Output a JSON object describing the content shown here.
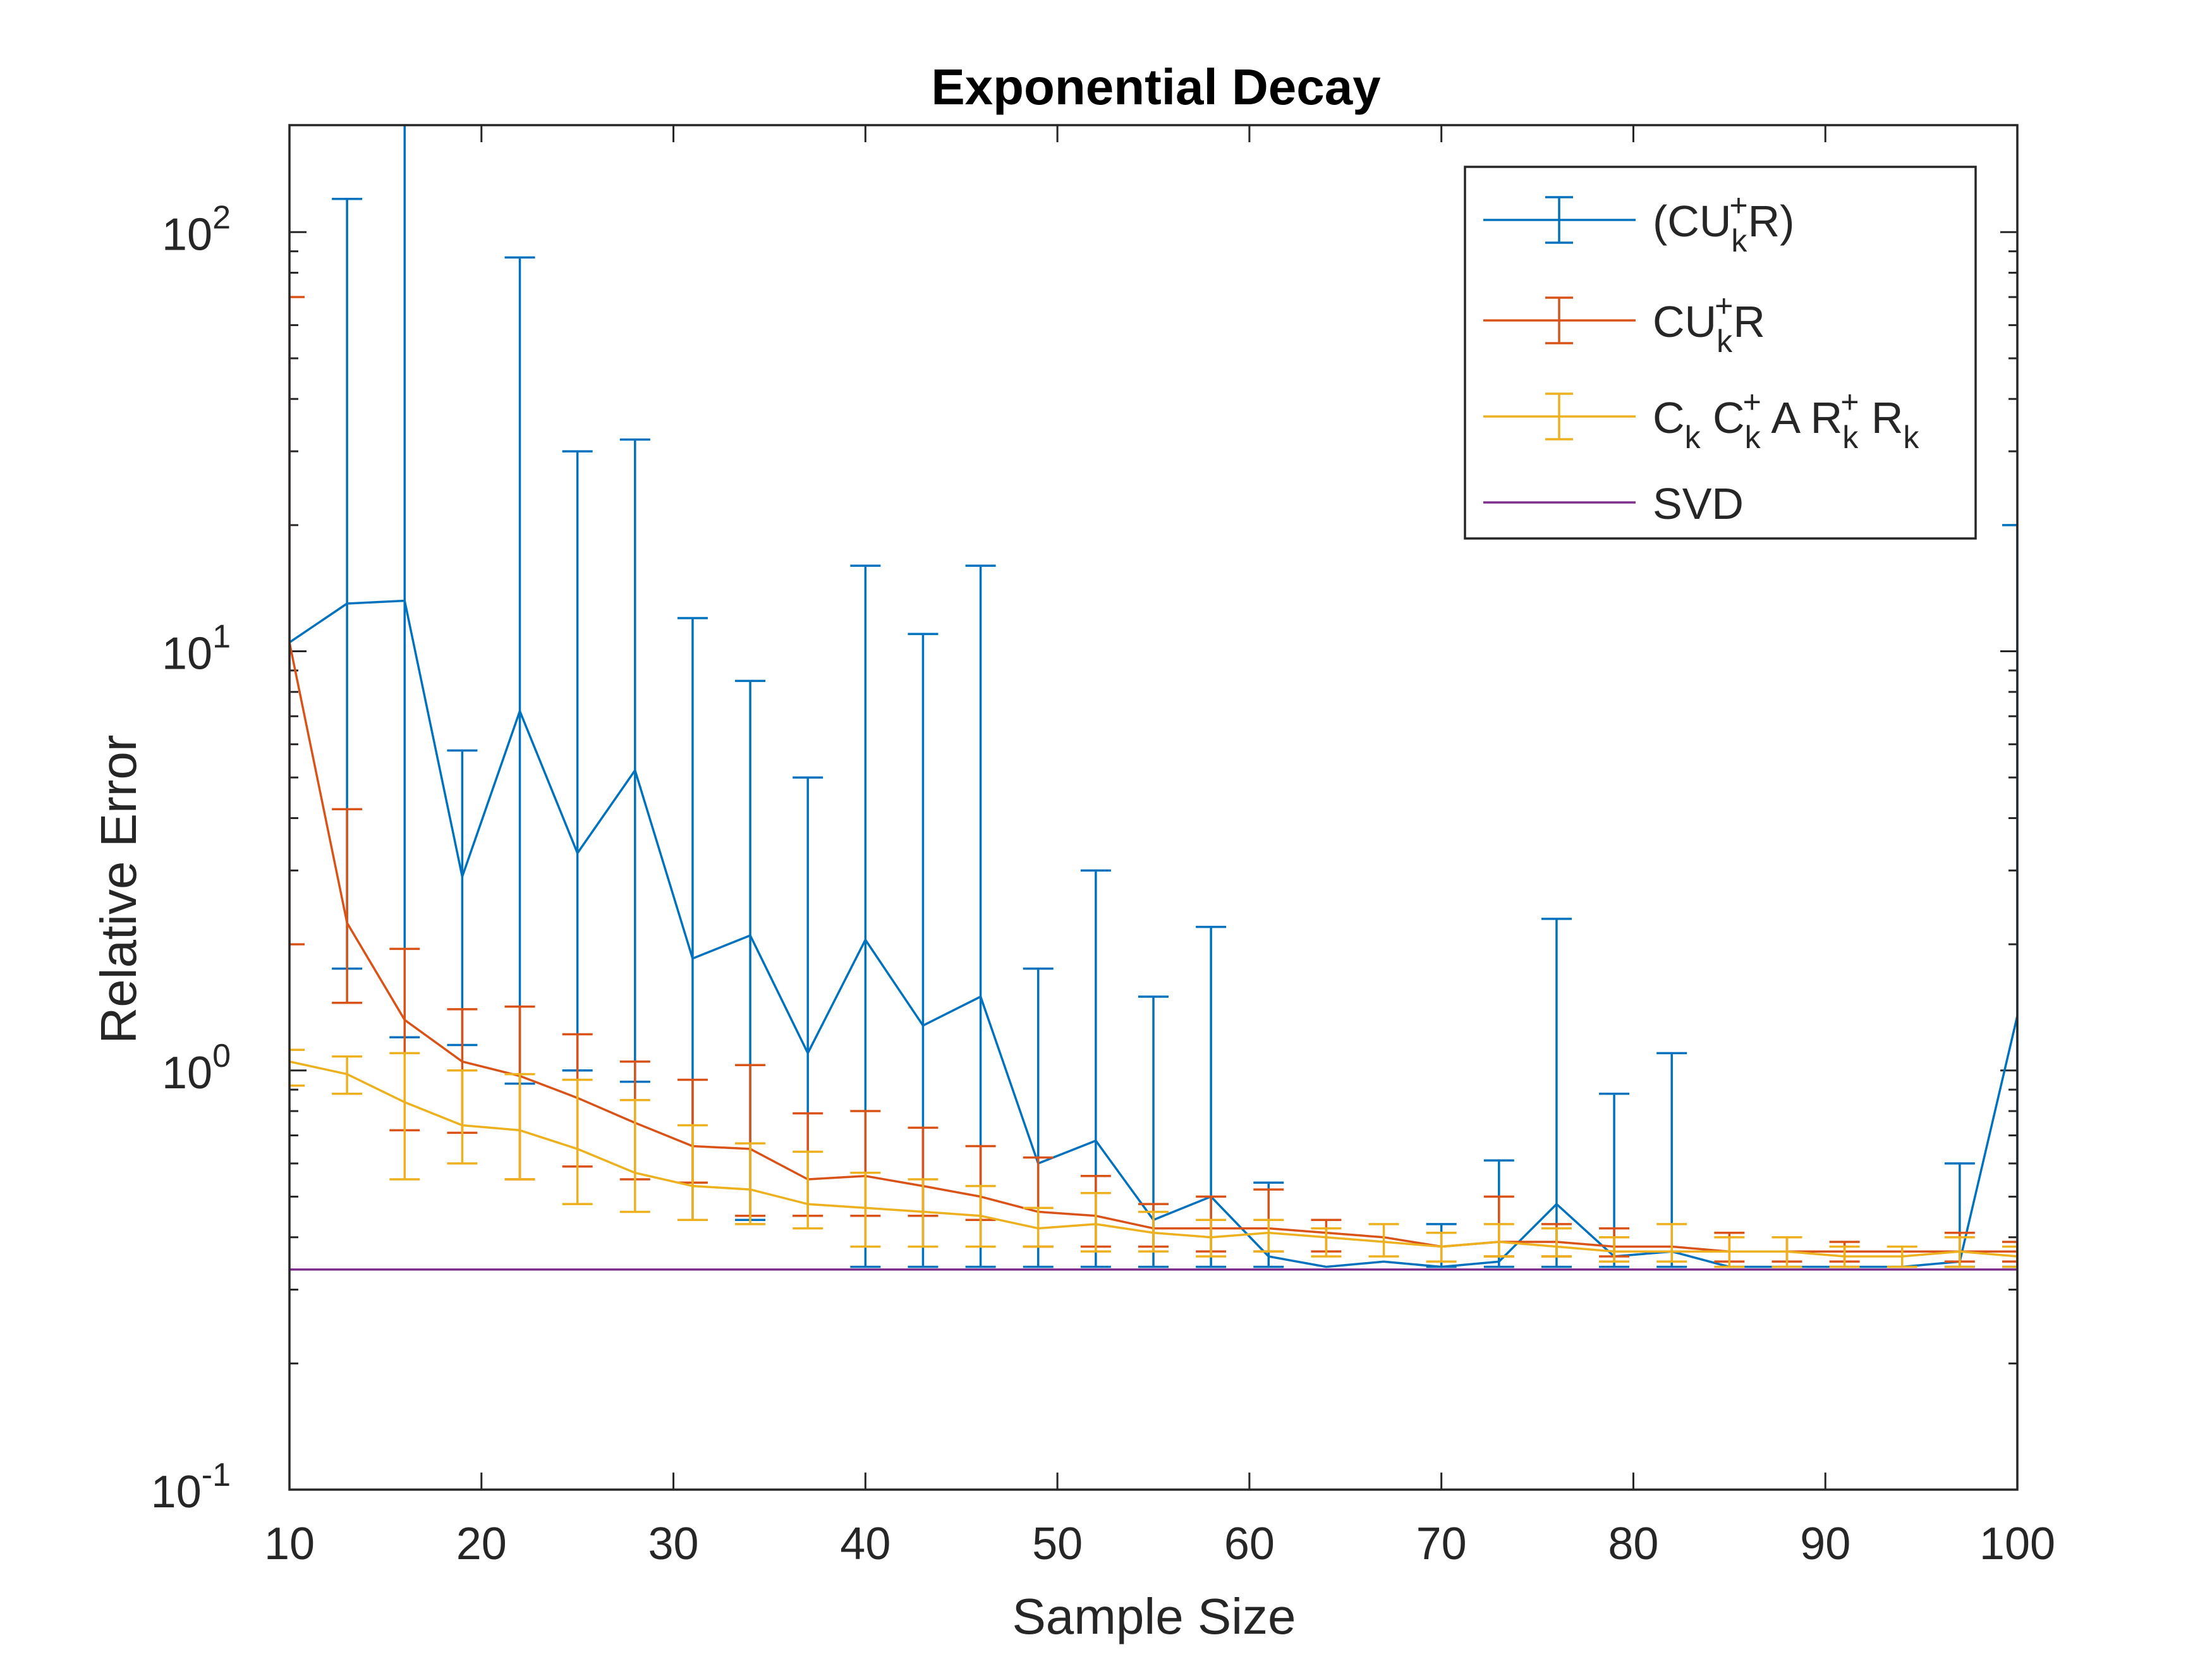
{
  "chart_data": {
    "type": "line",
    "title": "Exponential Decay",
    "xlabel": "Sample Size",
    "ylabel": "Relative Error",
    "xlim": [
      10,
      100
    ],
    "ylim": [
      0.1,
      180
    ],
    "yscale": "log",
    "grid": false,
    "legend_position": "top-right",
    "xticks": [
      10,
      20,
      30,
      40,
      50,
      60,
      70,
      80,
      90,
      100
    ],
    "yticks": [
      {
        "base": "10",
        "exp": "-1",
        "value": 0.1
      },
      {
        "base": "10",
        "exp": "0",
        "value": 1
      },
      {
        "base": "10",
        "exp": "1",
        "value": 10
      },
      {
        "base": "10",
        "exp": "2",
        "value": 100
      }
    ],
    "x": [
      10,
      13,
      16,
      19,
      22,
      25,
      28,
      31,
      34,
      37,
      40,
      43,
      46,
      49,
      52,
      55,
      58,
      61,
      64,
      67,
      70,
      73,
      76,
      79,
      82,
      85,
      88,
      91,
      94,
      97,
      100
    ],
    "series": [
      {
        "name": "(CU+R)k",
        "legend": {
          "base": "(CU",
          "sup1": "+",
          "mid": "R)",
          "sub1": "k"
        },
        "color": "#0072BD",
        "values": [
          10.5,
          13,
          13.2,
          2.9,
          7.2,
          3.3,
          5.2,
          1.85,
          2.1,
          1.1,
          2.05,
          1.28,
          1.5,
          0.6,
          0.68,
          0.44,
          0.5,
          0.36,
          0.34,
          0.35,
          0.34,
          0.35,
          0.48,
          0.36,
          0.37,
          0.34,
          0.34,
          0.34,
          0.34,
          0.35,
          1.35
        ],
        "upper": [
          null,
          120,
          185,
          5.8,
          87,
          30,
          32,
          12,
          8.5,
          5,
          16,
          11,
          16,
          1.75,
          3,
          1.5,
          2.2,
          0.54,
          null,
          null,
          0.43,
          0.61,
          2.3,
          0.88,
          1.1,
          null,
          null,
          null,
          null,
          0.6,
          20
        ],
        "lower": [
          null,
          1.75,
          1.2,
          1.15,
          0.93,
          1.0,
          0.94,
          0.44,
          0.44,
          0.45,
          0.34,
          0.34,
          0.34,
          0.34,
          0.34,
          0.34,
          0.34,
          0.34,
          null,
          null,
          0.34,
          0.34,
          0.34,
          0.34,
          0.34,
          null,
          null,
          null,
          null,
          0.34,
          0.34
        ]
      },
      {
        "name": "CUk+R",
        "legend": {
          "base": "CU",
          "sub1": "k",
          "sup1": "+",
          "mid": "R"
        },
        "color": "#D95319",
        "values": [
          10.5,
          2.25,
          1.32,
          1.05,
          0.97,
          0.86,
          0.75,
          0.66,
          0.65,
          0.55,
          0.56,
          0.53,
          0.5,
          0.46,
          0.45,
          0.42,
          0.42,
          0.42,
          0.41,
          0.4,
          0.38,
          0.39,
          0.39,
          0.38,
          0.38,
          0.37,
          0.37,
          0.37,
          0.37,
          0.37,
          0.37
        ],
        "upper": [
          70,
          4.2,
          1.95,
          1.4,
          1.42,
          1.22,
          1.05,
          0.95,
          1.03,
          0.79,
          0.8,
          0.73,
          0.66,
          0.62,
          0.56,
          0.48,
          0.5,
          0.52,
          0.44,
          null,
          null,
          0.5,
          0.43,
          0.42,
          null,
          0.41,
          0.4,
          0.39,
          null,
          0.41,
          0.39
        ],
        "lower": [
          2.0,
          1.45,
          0.72,
          0.71,
          0.55,
          0.59,
          0.55,
          0.54,
          0.45,
          0.45,
          0.45,
          0.45,
          0.44,
          0.38,
          0.38,
          0.38,
          0.37,
          0.37,
          0.37,
          null,
          null,
          0.36,
          0.36,
          0.36,
          null,
          0.35,
          0.35,
          0.35,
          null,
          0.35,
          0.35
        ]
      },
      {
        "name": "Ck Ck+ A Rk+ Rk",
        "legend": {
          "base": "C",
          "sub1": "k",
          "gap": " C",
          "sub2": "k",
          "sup2": "+",
          "mid2": " A R",
          "sub3": "k",
          "sup3": "+",
          "tail": " R",
          "sub4": "k"
        },
        "color": "#EDB120",
        "values": [
          1.05,
          0.98,
          0.84,
          0.74,
          0.72,
          0.65,
          0.57,
          0.53,
          0.52,
          0.48,
          0.47,
          0.46,
          0.45,
          0.42,
          0.43,
          0.41,
          0.4,
          0.41,
          0.4,
          0.39,
          0.38,
          0.39,
          0.38,
          0.37,
          0.37,
          0.37,
          0.37,
          0.36,
          0.36,
          0.37,
          0.36
        ],
        "upper": [
          1.12,
          1.08,
          1.1,
          1.0,
          0.98,
          0.95,
          0.85,
          0.74,
          0.67,
          0.64,
          0.57,
          0.55,
          0.53,
          0.47,
          0.51,
          0.46,
          0.44,
          0.44,
          0.42,
          0.43,
          0.41,
          0.43,
          0.42,
          0.4,
          0.43,
          0.4,
          0.4,
          0.38,
          0.38,
          0.4,
          0.38
        ],
        "lower": [
          0.92,
          0.88,
          0.55,
          0.6,
          0.55,
          0.48,
          0.46,
          0.44,
          0.43,
          0.42,
          0.38,
          0.38,
          0.38,
          0.38,
          0.37,
          0.37,
          0.36,
          0.37,
          0.36,
          0.36,
          0.35,
          0.36,
          0.36,
          0.35,
          0.35,
          0.34,
          0.34,
          0.34,
          0.34,
          0.34,
          0.34
        ]
      },
      {
        "name": "SVD",
        "legend": {
          "base": "SVD"
        },
        "color": "#7E2F8E",
        "values": [
          0.335,
          0.335,
          0.335,
          0.335,
          0.335,
          0.335,
          0.335,
          0.335,
          0.335,
          0.335,
          0.335,
          0.335,
          0.335,
          0.335,
          0.335,
          0.335,
          0.335,
          0.335,
          0.335,
          0.335,
          0.335,
          0.335,
          0.335,
          0.335,
          0.335,
          0.335,
          0.335,
          0.335,
          0.335,
          0.335,
          0.335
        ]
      }
    ]
  }
}
